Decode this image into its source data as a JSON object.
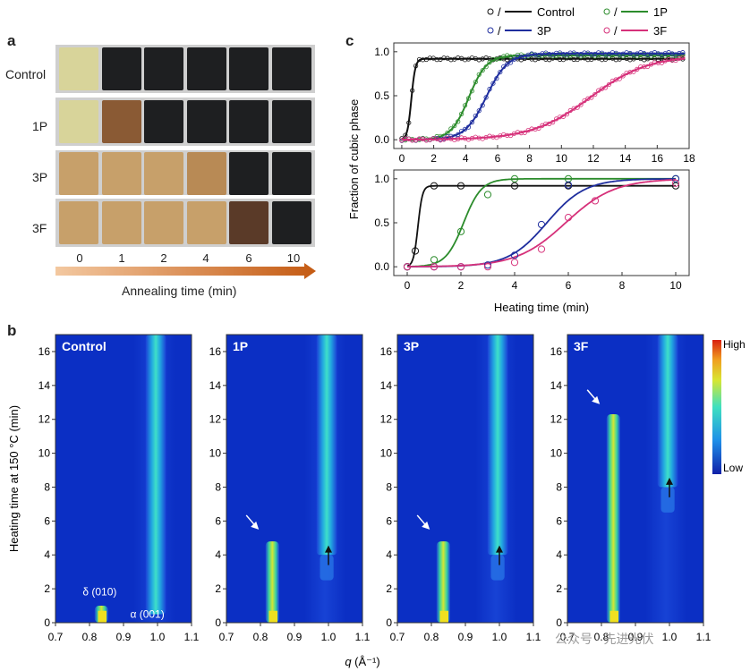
{
  "panel_a": {
    "letter": "a",
    "rows": [
      "Control",
      "1P",
      "3P",
      "3F"
    ],
    "time_labels": [
      "0",
      "1",
      "2",
      "4",
      "6",
      "10"
    ],
    "xlabel": "Annealing time (min)",
    "colors": {
      "yellow": "#d8d49a",
      "black": "#1e1f21",
      "amber": "#c7a06a",
      "dark_brown": "#5a3a28"
    }
  },
  "panel_c": {
    "letter": "c",
    "legend": {
      "separator": "/",
      "entries": [
        {
          "name": "Control",
          "color": "#111111"
        },
        {
          "name": "1P",
          "color": "#2c8c2c"
        },
        {
          "name": "3P",
          "color": "#1f2e9e"
        },
        {
          "name": "3F",
          "color": "#d6317a"
        }
      ]
    },
    "ylabel": "Fraction of cubic phase",
    "xlabel": "Heating time (min)"
  },
  "panel_b": {
    "letter": "b",
    "ylabel": "Heating time at 150 °C (min)",
    "xlabel_italic": "q",
    "xlabel_unit": "(Å⁻¹)",
    "colorbar": {
      "high": "High",
      "low": "Low"
    },
    "annotations": {
      "delta": "δ (010)",
      "alpha": "α (001)"
    }
  },
  "watermark": "公众号 · 先进光伏",
  "chart_data": [
    {
      "type": "scatter",
      "id": "c-top",
      "title": "",
      "xlabel": "",
      "ylabel": "Fraction of cubic phase",
      "xlim": [
        -0.5,
        18
      ],
      "ylim": [
        -0.1,
        1.1
      ],
      "xticks": [
        0,
        2,
        4,
        6,
        8,
        10,
        12,
        14,
        16,
        18
      ],
      "yticks": [
        0.0,
        0.5,
        1.0
      ],
      "series": [
        {
          "name": "Control",
          "color": "#111111",
          "sigmoid": {
            "t0": 0.6,
            "k": 8.0,
            "max": 0.92
          }
        },
        {
          "name": "1P",
          "color": "#2c8c2c",
          "sigmoid": {
            "t0": 4.2,
            "k": 1.8,
            "max": 0.96
          }
        },
        {
          "name": "3P",
          "color": "#1f2e9e",
          "sigmoid": {
            "t0": 5.3,
            "k": 1.5,
            "max": 0.98
          }
        },
        {
          "name": "3F",
          "color": "#d6317a",
          "sigmoid": {
            "t0": 11.8,
            "k": 0.55,
            "max": 0.96
          }
        }
      ]
    },
    {
      "type": "scatter",
      "id": "c-bottom",
      "title": "",
      "xlabel": "Heating time (min)",
      "ylabel": "",
      "xlim": [
        -0.5,
        10.5
      ],
      "ylim": [
        -0.1,
        1.1
      ],
      "xticks": [
        0,
        2,
        4,
        6,
        8,
        10
      ],
      "yticks": [
        0.0,
        0.5,
        1.0
      ],
      "series": [
        {
          "name": "Control",
          "color": "#111111",
          "x": [
            0,
            0.3,
            1,
            2,
            4,
            6,
            10
          ],
          "y": [
            0.0,
            0.18,
            0.92,
            0.92,
            0.92,
            0.92,
            0.92
          ]
        },
        {
          "name": "1P",
          "color": "#2c8c2c",
          "x": [
            0,
            1,
            2,
            3,
            4,
            6,
            10
          ],
          "y": [
            0.0,
            0.08,
            0.4,
            0.82,
            1.0,
            1.0,
            1.0
          ]
        },
        {
          "name": "3P",
          "color": "#1f2e9e",
          "x": [
            0,
            1,
            2,
            3,
            4,
            5,
            6,
            10
          ],
          "y": [
            0.0,
            0.0,
            0.0,
            0.02,
            0.13,
            0.48,
            0.93,
            1.0
          ]
        },
        {
          "name": "3F",
          "color": "#d6317a",
          "x": [
            0,
            1,
            2,
            3,
            4,
            5,
            6,
            7,
            10
          ],
          "y": [
            0.0,
            0.0,
            0.0,
            0.0,
            0.05,
            0.2,
            0.56,
            0.75,
            0.95
          ]
        }
      ],
      "fits": [
        {
          "name": "Control",
          "color": "#111111",
          "t0": 0.4,
          "k": 12,
          "max": 0.92
        },
        {
          "name": "1P",
          "color": "#2c8c2c",
          "t0": 2.1,
          "k": 3.0,
          "max": 1.0
        },
        {
          "name": "3P",
          "color": "#1f2e9e",
          "t0": 5.2,
          "k": 1.4,
          "max": 1.0
        },
        {
          "name": "3F",
          "color": "#d6317a",
          "t0": 5.9,
          "k": 1.1,
          "max": 1.0
        }
      ]
    },
    {
      "type": "heatmap",
      "id": "b-maps",
      "xlim": [
        0.7,
        1.1
      ],
      "ylim": [
        0,
        17
      ],
      "xticks": [
        0.7,
        0.8,
        0.9,
        1.0,
        1.1
      ],
      "yticks": [
        0,
        2,
        4,
        6,
        8,
        10,
        12,
        14,
        16
      ],
      "panels": [
        {
          "label": "Control",
          "delta_end": 1.0,
          "alpha_start": 0.5,
          "arrow_white": null,
          "arrow_black": null
        },
        {
          "label": "1P",
          "delta_end": 4.8,
          "alpha_start": 4.0,
          "arrow_white": [
            0.79,
            5.6
          ],
          "arrow_black": [
            1.0,
            3.4
          ]
        },
        {
          "label": "3P",
          "delta_end": 4.8,
          "alpha_start": 4.0,
          "arrow_white": [
            0.79,
            5.6
          ],
          "arrow_black": [
            1.0,
            3.4
          ]
        },
        {
          "label": "3F",
          "delta_end": 12.3,
          "alpha_start": 8.0,
          "arrow_white": [
            0.79,
            13.0
          ],
          "arrow_black": [
            1.0,
            7.4
          ]
        }
      ]
    }
  ]
}
